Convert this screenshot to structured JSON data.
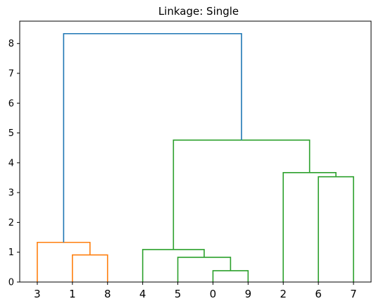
{
  "chart_data": {
    "type": "dendrogram",
    "title": "Linkage: Single",
    "xlabel": "",
    "ylabel": "",
    "ylim": [
      0,
      8.75
    ],
    "yticks": [
      0,
      1,
      2,
      3,
      4,
      5,
      6,
      7,
      8
    ],
    "leaf_order": [
      "3",
      "1",
      "8",
      "4",
      "5",
      "0",
      "9",
      "2",
      "6",
      "7"
    ],
    "grid": false,
    "merges": [
      {
        "left": "0",
        "right": "9",
        "height": 0.38,
        "color": "#2ca02c"
      },
      {
        "left": "5",
        "right": "{0,9}",
        "height": 0.83,
        "color": "#2ca02c"
      },
      {
        "left": "1",
        "right": "8",
        "height": 0.91,
        "color": "#ff7f0e"
      },
      {
        "left": "4",
        "right": "{5,0,9}",
        "height": 1.09,
        "color": "#2ca02c"
      },
      {
        "left": "3",
        "right": "{1,8}",
        "height": 1.33,
        "color": "#ff7f0e"
      },
      {
        "left": "6",
        "right": "7",
        "height": 3.53,
        "color": "#2ca02c"
      },
      {
        "left": "2",
        "right": "{6,7}",
        "height": 3.67,
        "color": "#2ca02c"
      },
      {
        "left": "{4,5,0,9}",
        "right": "{2,6,7}",
        "height": 4.76,
        "color": "#2ca02c"
      },
      {
        "left": "{3,1,8}",
        "right": "{4,5,0,9,2,6,7}",
        "height": 8.33,
        "color": "#1f77b4"
      }
    ],
    "clusters": [
      {
        "color": "#ff7f0e",
        "leaves": [
          "3",
          "1",
          "8"
        ]
      },
      {
        "color": "#2ca02c",
        "leaves": [
          "4",
          "5",
          "0",
          "9",
          "2",
          "6",
          "7"
        ]
      }
    ],
    "above_threshold_color": "#1f77b4"
  }
}
